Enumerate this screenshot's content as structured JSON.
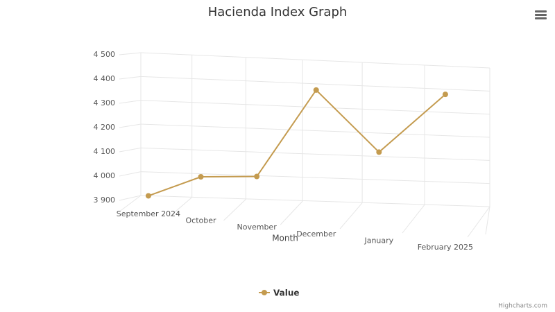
{
  "chart_data": {
    "type": "line",
    "title": "Hacienda Index Graph",
    "x_label": "Month",
    "categories": [
      "September 2024",
      "October",
      "November",
      "December",
      "January",
      "February 2025"
    ],
    "series": [
      {
        "name": "Value",
        "color": "#c49b4f",
        "values": [
          3920,
          4000,
          4005,
          4355,
          4110,
          4345
        ]
      }
    ],
    "ylim": [
      3900,
      4500
    ],
    "yticks": [
      {
        "value": 3900,
        "label": "3 900"
      },
      {
        "value": 4000,
        "label": "4 000"
      },
      {
        "value": 4100,
        "label": "4 100"
      },
      {
        "value": 4200,
        "label": "4 200"
      },
      {
        "value": 4300,
        "label": "4 300"
      },
      {
        "value": 4400,
        "label": "4 400"
      },
      {
        "value": 4500,
        "label": "4 500"
      }
    ],
    "grid": true,
    "credits": "Highcharts.com"
  }
}
